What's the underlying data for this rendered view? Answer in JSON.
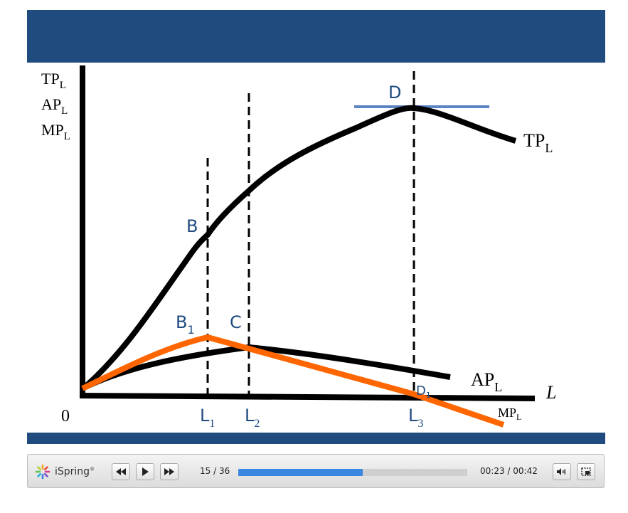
{
  "slide": {
    "header_color": "#1f4b7f",
    "footer_color": "#1f4b7f",
    "curve_color_black": "#000000",
    "curve_color_orange": "#ff6600",
    "label_color_blue": "#1f4b7f",
    "tangent_color": "#5b86c3",
    "y_axis_labels": [
      {
        "main": "TP",
        "sub": "L"
      },
      {
        "main": "AP",
        "sub": "L"
      },
      {
        "main": "MP",
        "sub": "L"
      }
    ],
    "origin_label": "0",
    "x_axis_label": "L",
    "x_ticks": [
      {
        "main": "L",
        "sub": "1"
      },
      {
        "main": "L",
        "sub": "2"
      },
      {
        "main": "L",
        "sub": "3"
      }
    ],
    "curve_labels": {
      "tp": {
        "main": "TP",
        "sub": "L"
      },
      "ap": {
        "main": "AP",
        "sub": "L"
      },
      "mp": {
        "main": "MP",
        "sub": "L"
      }
    },
    "points": {
      "b": "B",
      "c": "C",
      "d": "D",
      "b1": {
        "main": "B",
        "sub": "1"
      },
      "d1": {
        "main": "D",
        "sub": "1"
      }
    }
  },
  "player": {
    "brand": "iSpring",
    "brand_mark": "®",
    "slide_counter": "15 / 36",
    "time": "00:23 / 00:42",
    "progress_fraction": 0.545,
    "progress_color": "#3a86e0",
    "icons": {
      "rewind": "rewind-icon",
      "play": "play-icon",
      "forward": "fast-forward-icon",
      "volume": "volume-icon",
      "fullscreen": "fullscreen-icon"
    }
  }
}
